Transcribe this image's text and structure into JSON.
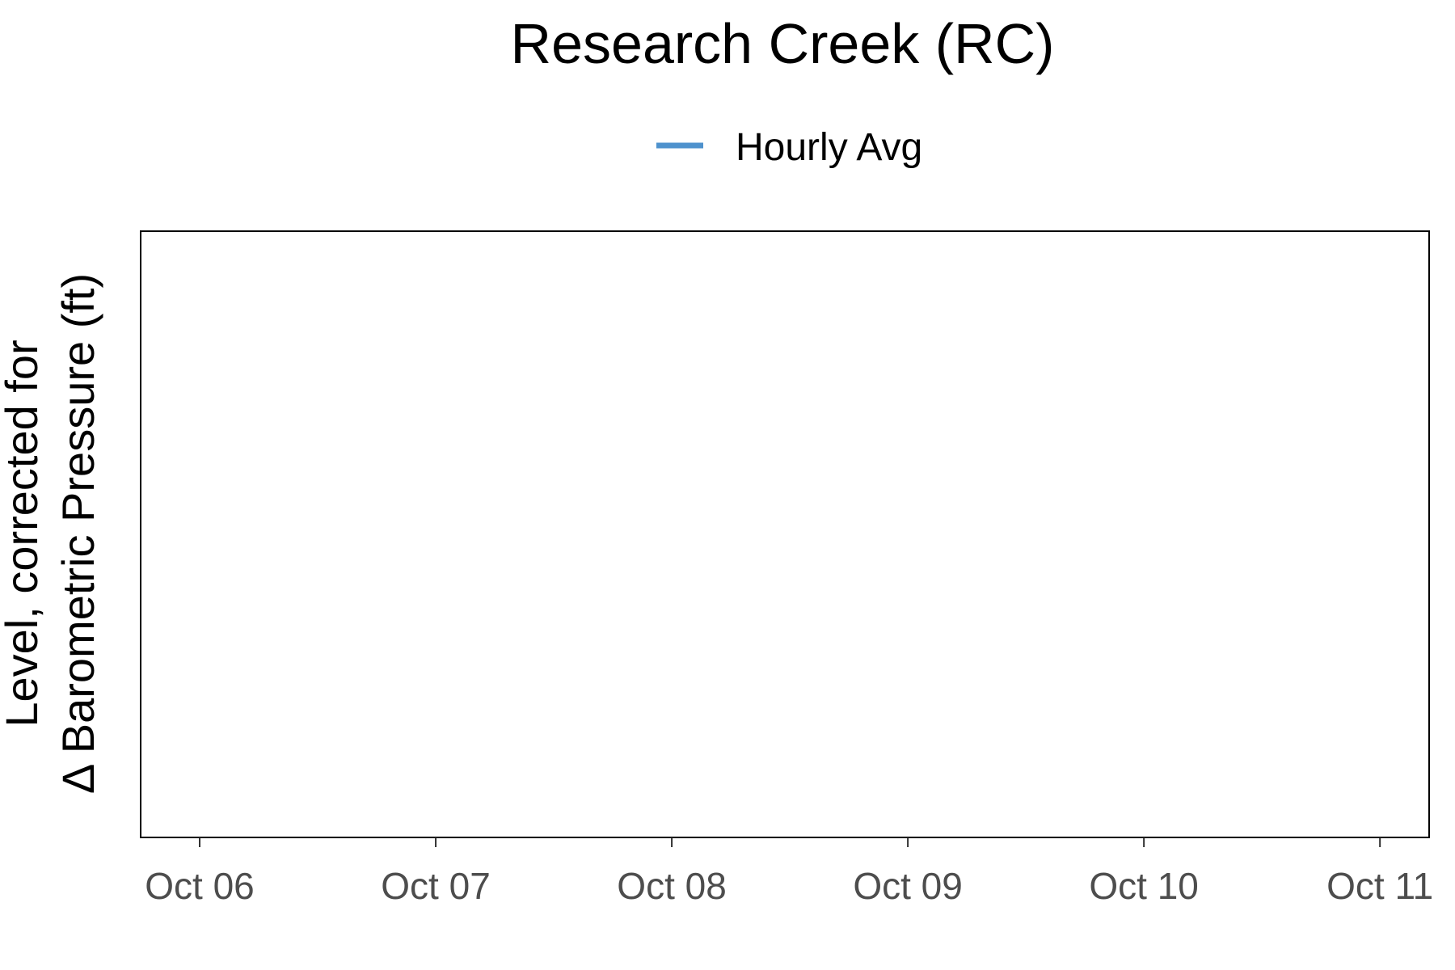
{
  "chart_data": {
    "type": "line",
    "title": "Research Creek (RC)",
    "xlabel": "",
    "ylabel_lines": [
      "Level, corrected for",
      "Δ Barometric Pressure (ft)"
    ],
    "x_tick_labels": [
      "Oct 06",
      "Oct 07",
      "Oct 08",
      "Oct 09",
      "Oct 10",
      "Oct 11"
    ],
    "x_tick_dates": [
      "2023-10-06",
      "2023-10-07",
      "2023-10-08",
      "2023-10-09",
      "2023-10-10",
      "2023-10-11"
    ],
    "xlim": [
      "2023-10-05T18:00",
      "2023-10-11T05:00"
    ],
    "series": [
      {
        "name": "Hourly Avg",
        "color": "#4e92cd",
        "x": [],
        "y": []
      }
    ],
    "legend_position": "top",
    "grid": false
  }
}
